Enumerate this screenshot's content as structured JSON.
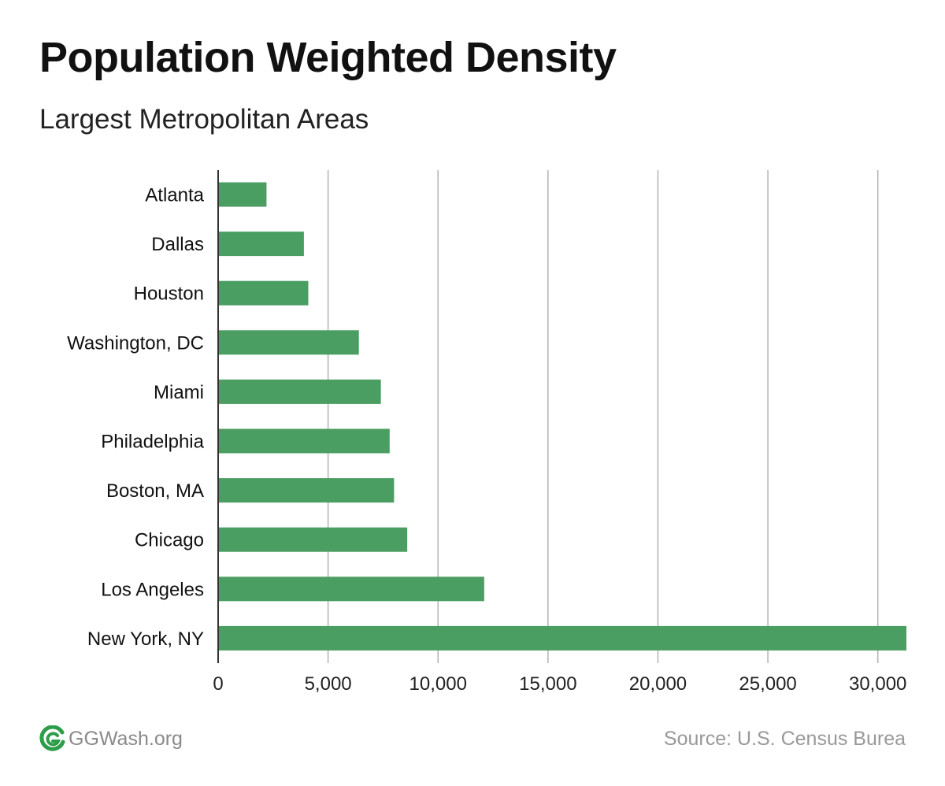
{
  "header": {
    "title": "Population Weighted Density",
    "subtitle": "Largest Metropolitan Areas"
  },
  "footer": {
    "brand": "GGWash.org",
    "logo_icon": "ggwash-logo-icon",
    "source": "Source: U.S. Census Burea"
  },
  "colors": {
    "bar": "#4a9e62",
    "grid": "#b3b3b3",
    "logo": "#2e9d4a"
  },
  "chart_data": {
    "type": "bar",
    "orientation": "horizontal",
    "title": "Population Weighted Density",
    "subtitle": "Largest Metropolitan Areas",
    "categories": [
      "Atlanta",
      "Dallas",
      "Houston",
      "Washington, DC",
      "Miami",
      "Philadelphia",
      "Boston, MA",
      "Chicago",
      "Los Angeles",
      "New York, NY"
    ],
    "values": [
      2200,
      3900,
      4100,
      6400,
      7400,
      7800,
      8000,
      8600,
      12100,
      31300
    ],
    "xlim": [
      0,
      31300
    ],
    "xticks": [
      0,
      5000,
      10000,
      15000,
      20000,
      25000,
      30000
    ],
    "xtick_labels": [
      "0",
      "5,000",
      "10,000",
      "15,000",
      "20,000",
      "25,000",
      "30,000"
    ],
    "grid": true,
    "legend": "none"
  }
}
